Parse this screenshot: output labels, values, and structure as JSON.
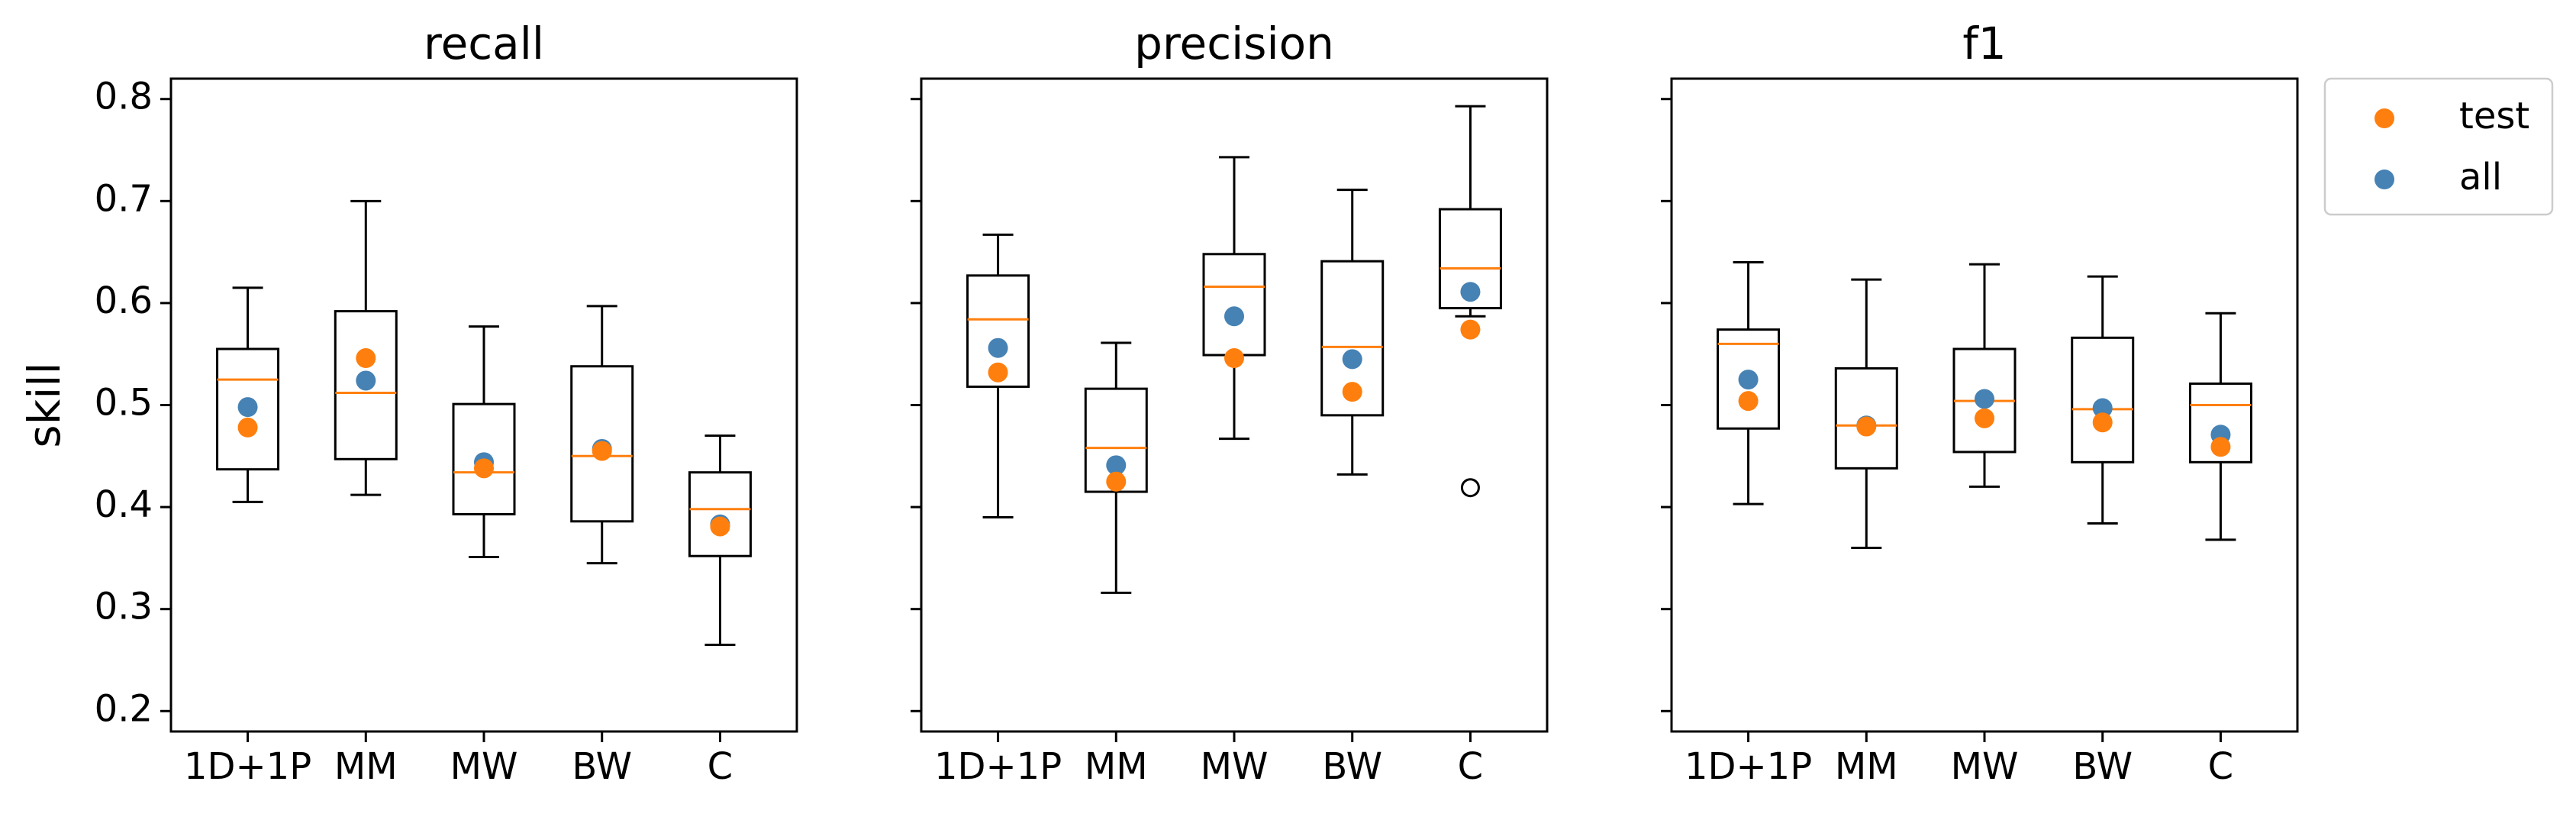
{
  "chart_data": {
    "type": "box",
    "ylabel": "skill",
    "ylim": [
      0.18,
      0.82
    ],
    "yticks": [
      "0.2",
      "0.3",
      "0.4",
      "0.5",
      "0.6",
      "0.7",
      "0.8"
    ],
    "categories": [
      "1D+1P",
      "MM",
      "MW",
      "BW",
      "C"
    ],
    "legend": {
      "placement": "outside-top-right",
      "entries": [
        {
          "name": "test",
          "color": "#ff7f0e"
        },
        {
          "name": "all",
          "color": "#4682b4"
        }
      ]
    },
    "colors": {
      "median": "#ff7f0e",
      "test": "#ff7f0e",
      "all": "#4682b4"
    },
    "panels": [
      {
        "title": "recall",
        "boxes": [
          {
            "category": "1D+1P",
            "whislo": 0.405,
            "q1": 0.437,
            "med": 0.525,
            "q3": 0.555,
            "whishi": 0.615,
            "fliers": [],
            "test": 0.478,
            "all": 0.498
          },
          {
            "category": "MM",
            "whislo": 0.412,
            "q1": 0.447,
            "med": 0.512,
            "q3": 0.592,
            "whishi": 0.7,
            "fliers": [],
            "test": 0.546,
            "all": 0.524
          },
          {
            "category": "MW",
            "whislo": 0.351,
            "q1": 0.393,
            "med": 0.434,
            "q3": 0.501,
            "whishi": 0.577,
            "fliers": [],
            "test": 0.438,
            "all": 0.444
          },
          {
            "category": "BW",
            "whislo": 0.345,
            "q1": 0.386,
            "med": 0.45,
            "q3": 0.538,
            "whishi": 0.597,
            "fliers": [],
            "test": 0.455,
            "all": 0.457
          },
          {
            "category": "C",
            "whislo": 0.265,
            "q1": 0.352,
            "med": 0.398,
            "q3": 0.434,
            "whishi": 0.47,
            "fliers": [],
            "test": 0.381,
            "all": 0.383
          }
        ]
      },
      {
        "title": "precision",
        "boxes": [
          {
            "category": "1D+1P",
            "whislo": 0.39,
            "q1": 0.518,
            "med": 0.584,
            "q3": 0.627,
            "whishi": 0.667,
            "fliers": [],
            "test": 0.532,
            "all": 0.556
          },
          {
            "category": "MM",
            "whislo": 0.316,
            "q1": 0.415,
            "med": 0.458,
            "q3": 0.516,
            "whishi": 0.561,
            "fliers": [],
            "test": 0.425,
            "all": 0.441
          },
          {
            "category": "MW",
            "whislo": 0.467,
            "q1": 0.549,
            "med": 0.616,
            "q3": 0.648,
            "whishi": 0.743,
            "fliers": [],
            "test": 0.546,
            "all": 0.587
          },
          {
            "category": "BW",
            "whislo": 0.432,
            "q1": 0.49,
            "med": 0.557,
            "q3": 0.641,
            "whishi": 0.711,
            "fliers": [],
            "test": 0.513,
            "all": 0.545
          },
          {
            "category": "C",
            "whislo": 0.587,
            "q1": 0.595,
            "med": 0.634,
            "q3": 0.692,
            "whishi": 0.793,
            "fliers": [
              0.419
            ],
            "test": 0.574,
            "all": 0.611
          }
        ]
      },
      {
        "title": "f1",
        "boxes": [
          {
            "category": "1D+1P",
            "whislo": 0.403,
            "q1": 0.477,
            "med": 0.56,
            "q3": 0.574,
            "whishi": 0.64,
            "fliers": [],
            "test": 0.504,
            "all": 0.525
          },
          {
            "category": "MM",
            "whislo": 0.36,
            "q1": 0.438,
            "med": 0.48,
            "q3": 0.536,
            "whishi": 0.623,
            "fliers": [],
            "test": 0.479,
            "all": 0.48
          },
          {
            "category": "MW",
            "whislo": 0.42,
            "q1": 0.454,
            "med": 0.504,
            "q3": 0.555,
            "whishi": 0.638,
            "fliers": [],
            "test": 0.487,
            "all": 0.506
          },
          {
            "category": "BW",
            "whislo": 0.384,
            "q1": 0.444,
            "med": 0.496,
            "q3": 0.566,
            "whishi": 0.626,
            "fliers": [],
            "test": 0.483,
            "all": 0.497
          },
          {
            "category": "C",
            "whislo": 0.368,
            "q1": 0.444,
            "med": 0.5,
            "q3": 0.521,
            "whishi": 0.59,
            "fliers": [],
            "test": 0.459,
            "all": 0.471
          }
        ]
      }
    ]
  }
}
